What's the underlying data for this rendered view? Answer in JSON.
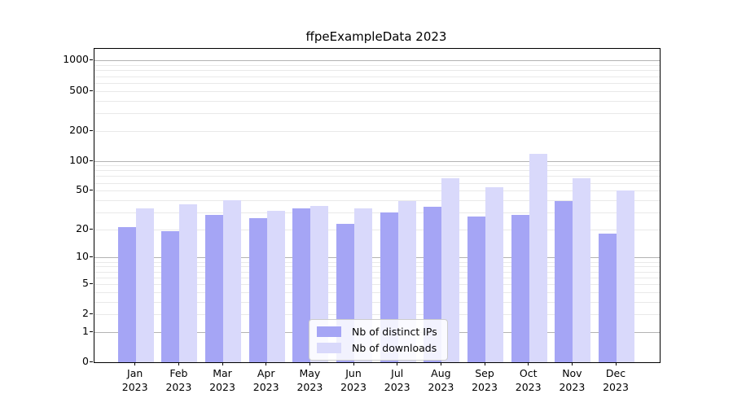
{
  "chart_data": {
    "type": "bar",
    "title": "ffpeExampleData 2023",
    "scale": "log10(1+y)",
    "ylim": [
      0,
      1300
    ],
    "grid": "horizontal, log minor + major",
    "legend_position": "bottom-center-inside",
    "categories": [
      {
        "month": "Jan",
        "year": "2023"
      },
      {
        "month": "Feb",
        "year": "2023"
      },
      {
        "month": "Mar",
        "year": "2023"
      },
      {
        "month": "Apr",
        "year": "2023"
      },
      {
        "month": "May",
        "year": "2023"
      },
      {
        "month": "Jun",
        "year": "2023"
      },
      {
        "month": "Jul",
        "year": "2023"
      },
      {
        "month": "Aug",
        "year": "2023"
      },
      {
        "month": "Sep",
        "year": "2023"
      },
      {
        "month": "Oct",
        "year": "2023"
      },
      {
        "month": "Nov",
        "year": "2023"
      },
      {
        "month": "Dec",
        "year": "2023"
      }
    ],
    "series": [
      {
        "name": "Nb of distinct IPs",
        "color": "#a5a5f5",
        "values": [
          21,
          19,
          28,
          26,
          33,
          23,
          30,
          34,
          27,
          28,
          39,
          18
        ]
      },
      {
        "name": "Nb of downloads",
        "color": "#d9d9fb",
        "values": [
          33,
          36,
          40,
          31,
          35,
          33,
          39,
          67,
          54,
          117,
          67,
          50
        ]
      }
    ],
    "yticks": [
      0,
      1,
      2,
      5,
      10,
      20,
      50,
      100,
      200,
      500,
      1000
    ],
    "grid_major": [
      1,
      10,
      100,
      1000
    ],
    "grid_minor": [
      2,
      3,
      4,
      5,
      6,
      7,
      8,
      9,
      20,
      30,
      40,
      50,
      60,
      70,
      80,
      90,
      200,
      300,
      400,
      500,
      600,
      700,
      800,
      900
    ]
  },
  "colors": {
    "axis": "#000000",
    "grid_major": "#b3b3b3",
    "grid_minor": "#e9e9e9",
    "background": "#ffffff"
  }
}
